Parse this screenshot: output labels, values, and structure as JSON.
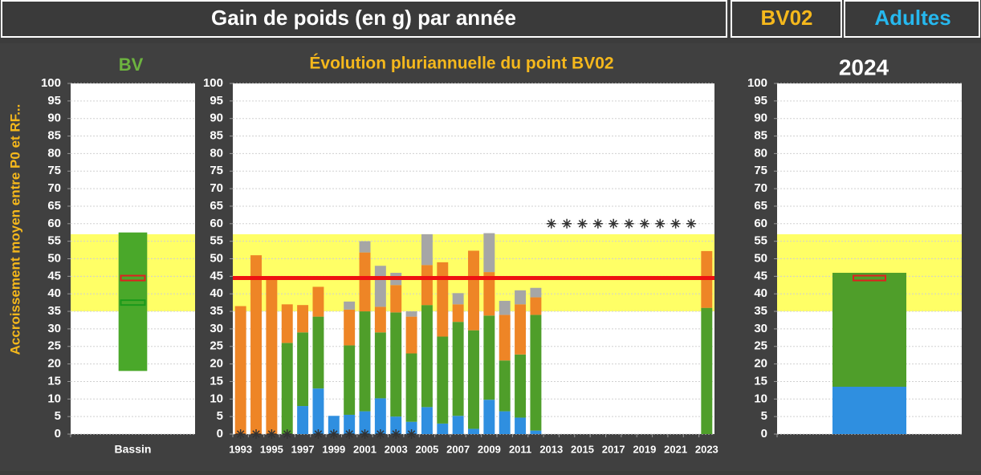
{
  "header": {
    "title": "Gain de poids (en g) par année",
    "station": "BV02",
    "group": "Adultes"
  },
  "chart_data": [
    {
      "type": "range_bar",
      "title": "BV",
      "y_label": "Accroissement moyen entre P0 et RF...",
      "categories": [
        "Bassin"
      ],
      "low": [
        18
      ],
      "high": [
        57.5
      ],
      "color": "#4aa82a",
      "markers": [
        {
          "value": 44.5,
          "color": "#e02020"
        },
        {
          "value": 37.5,
          "color": "#1a9a1a"
        }
      ],
      "band": [
        35,
        57
      ],
      "band_color": "#ffff66",
      "ylim": [
        0,
        100
      ],
      "yticks": [
        0,
        5,
        10,
        15,
        20,
        25,
        30,
        35,
        40,
        45,
        50,
        55,
        60,
        65,
        70,
        75,
        80,
        85,
        90,
        95,
        100
      ],
      "grid": true
    },
    {
      "type": "stacked_bar",
      "title": "Évolution pluriannuelle du point BV02",
      "categories": [
        "1993",
        null,
        "1995",
        null,
        "1997",
        null,
        "1999",
        null,
        "2001",
        null,
        "2003",
        null,
        "2005",
        null,
        "2007",
        null,
        "2009",
        null,
        "2011",
        null,
        "2013",
        null,
        "2015",
        null,
        "2017",
        null,
        "2019",
        null,
        "2021",
        null,
        "2023"
      ],
      "series": [
        {
          "color": "#2f8fe0",
          "values": [
            0,
            0,
            0,
            0,
            8,
            13,
            5.2,
            5.5,
            6.5,
            10.2,
            5,
            3.5,
            7.7,
            3,
            5.2,
            1.5,
            9.8,
            6.5,
            4.7,
            1,
            null,
            null,
            null,
            null,
            null,
            null,
            null,
            null,
            null,
            null,
            0
          ]
        },
        {
          "color": "#4f9e2a",
          "values": [
            0,
            0,
            0,
            26,
            21,
            20.5,
            0,
            19.8,
            28.5,
            18.8,
            29.7,
            19.5,
            29.1,
            24.8,
            26.8,
            28.1,
            24,
            14.5,
            18,
            33,
            null,
            null,
            null,
            null,
            null,
            null,
            null,
            null,
            null,
            null,
            36
          ]
        },
        {
          "color": "#ee8526",
          "values": [
            36.5,
            51,
            44,
            11,
            7.8,
            8.5,
            0,
            10.2,
            16.8,
            7.3,
            7.8,
            10.5,
            11.4,
            21.2,
            5,
            22.7,
            12.4,
            13,
            14.3,
            5,
            null,
            null,
            null,
            null,
            null,
            null,
            null,
            null,
            null,
            null,
            16.2
          ]
        },
        {
          "color": "#a6a6a6",
          "values": [
            0,
            0,
            0,
            0,
            0,
            0,
            0,
            2.3,
            3.2,
            11.7,
            3.5,
            1.5,
            8.8,
            0,
            3.2,
            0,
            11.1,
            4,
            4,
            2.7,
            null,
            null,
            null,
            null,
            null,
            null,
            null,
            null,
            null,
            null,
            0
          ]
        }
      ],
      "no_data_markers": [
        0,
        0,
        0,
        0,
        null,
        0,
        0,
        0,
        0,
        0,
        0,
        0,
        null,
        null,
        null,
        null,
        null,
        null,
        null,
        null,
        60,
        60,
        60,
        60,
        60,
        60,
        60,
        60,
        60,
        60,
        null
      ],
      "reference_line": {
        "value": 44.5,
        "color": "#ee1111"
      },
      "band": [
        35,
        57
      ],
      "band_color": "#ffff66",
      "ylim": [
        0,
        100
      ],
      "yticks": [
        0,
        5,
        10,
        15,
        20,
        25,
        30,
        35,
        40,
        45,
        50,
        55,
        60,
        65,
        70,
        75,
        80,
        85,
        90,
        95,
        100
      ],
      "grid": true
    },
    {
      "type": "stacked_bar",
      "title": "2024",
      "categories": [
        null
      ],
      "series": [
        {
          "color": "#2f8fe0",
          "values": [
            13.5
          ]
        },
        {
          "color": "#4f9e2a",
          "values": [
            32.5
          ]
        }
      ],
      "markers": [
        {
          "value": 44.5,
          "color": "#e02020"
        }
      ],
      "band": [
        35,
        57
      ],
      "band_color": "#ffff66",
      "ylim": [
        0,
        100
      ],
      "yticks": [
        0,
        5,
        10,
        15,
        20,
        25,
        30,
        35,
        40,
        45,
        50,
        55,
        60,
        65,
        70,
        75,
        80,
        85,
        90,
        95,
        100
      ],
      "grid": true
    }
  ]
}
